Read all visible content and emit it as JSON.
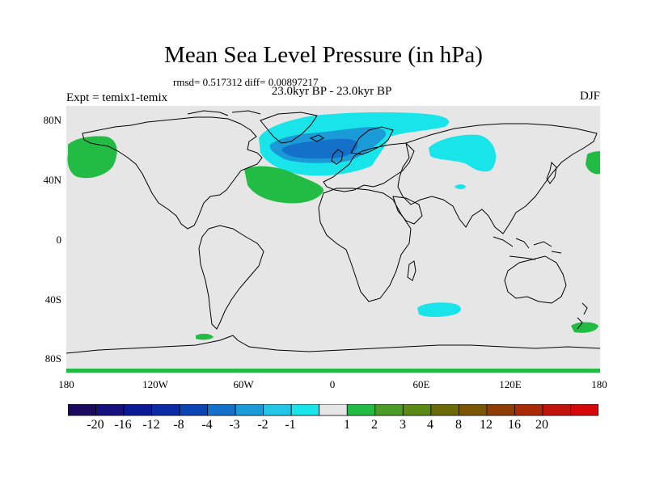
{
  "title": "Mean Sea Level Pressure (in hPa)",
  "stats_line": "rmsd= 0.517312 diff= 0.00897217",
  "subtitle": "23.0kyr BP - 23.0kyr BP",
  "experiment": "Expt = temix1-temix",
  "season": "DJF",
  "y_axis_labels": [
    "80N",
    "40N",
    "0",
    "40S",
    "80S"
  ],
  "x_axis_labels": [
    "180",
    "120W",
    "60W",
    "0",
    "60E",
    "120E",
    "180"
  ],
  "colorbar": {
    "labels": [
      "-20",
      "-16",
      "-12",
      "-8",
      "-4",
      "-3",
      "-2",
      "-1",
      "1",
      "2",
      "3",
      "4",
      "8",
      "12",
      "16",
      "20"
    ],
    "colors": [
      "#1c0a5e",
      "#14107e",
      "#0a1a96",
      "#0a2aa6",
      "#0b44b2",
      "#1470c8",
      "#1a9ad6",
      "#22c6e6",
      "#19e4ea",
      "#e6e6e6",
      "#22bb44",
      "#4a9b28",
      "#5a8a14",
      "#6b6a08",
      "#7a5604",
      "#8e3e04",
      "#a82a06",
      "#c2140a",
      "#d40808"
    ]
  },
  "map_colors": {
    "ocean_background": "#e6e6e6",
    "coast": "#000000",
    "positive_anomaly": "#22bb44",
    "negative_light": "#19e4ea",
    "negative_mid": "#1a9ad6",
    "negative_dark": "#1470c8"
  }
}
